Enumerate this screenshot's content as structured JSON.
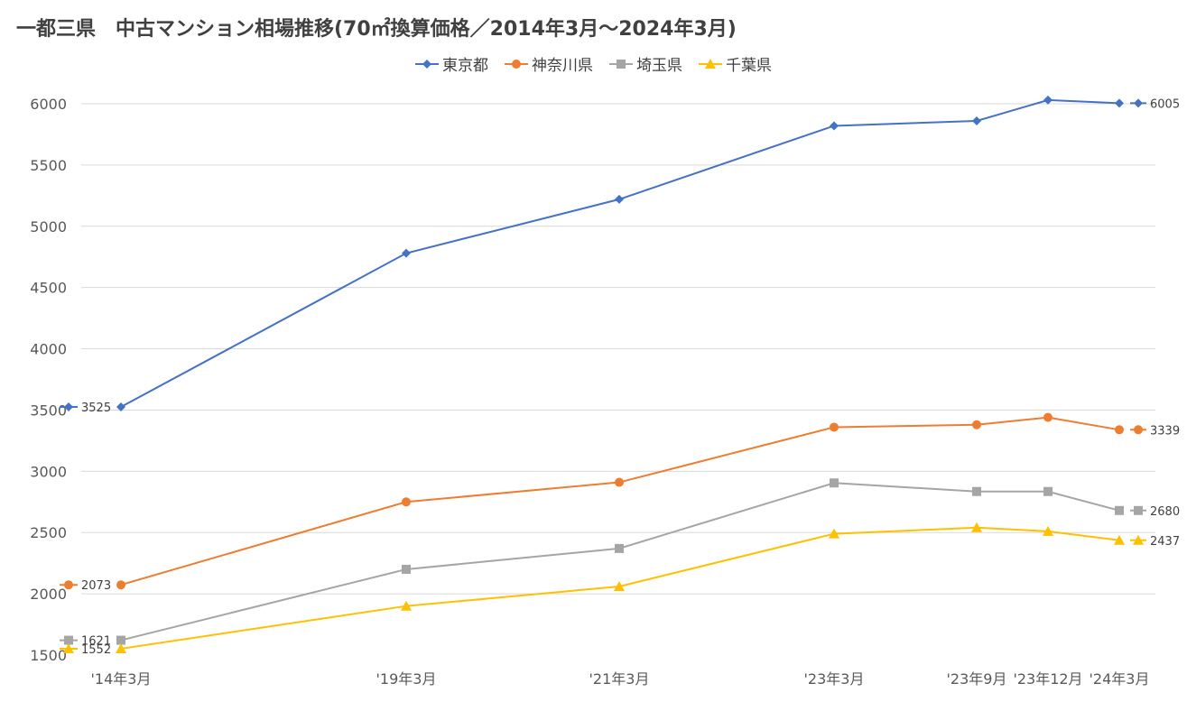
{
  "chart_data": {
    "type": "line",
    "title": "一都三県　中古マンション相場推移(70㎡換算価格／2014年3月～2024年3月)",
    "xlabel": "",
    "ylabel": "",
    "categories": [
      "'14年3月",
      "'19年3月",
      "'21年3月",
      "'23年3月",
      "'23年9月",
      "'23年12月",
      "'24年3月"
    ],
    "x_positions": [
      2014.25,
      2019.25,
      2021.25,
      2023.25,
      2023.75,
      2024.0,
      2024.25
    ],
    "ylim": [
      1500,
      6000
    ],
    "yticks": [
      1500,
      2000,
      2500,
      3000,
      3500,
      4000,
      4500,
      5000,
      5500,
      6000
    ],
    "grid": true,
    "legend_position": "top",
    "series": [
      {
        "name": "東京都",
        "color": "#4472c4",
        "marker": "diamond",
        "values": [
          3525,
          4780,
          5220,
          5820,
          5860,
          6030,
          6005
        ],
        "start_label": "3525",
        "end_label": "6005"
      },
      {
        "name": "神奈川県",
        "color": "#ed7d31",
        "marker": "circle",
        "values": [
          2073,
          2750,
          2910,
          3360,
          3380,
          3440,
          3339
        ],
        "start_label": "2073",
        "end_label": "3339"
      },
      {
        "name": "埼玉県",
        "color": "#a5a5a5",
        "marker": "square",
        "values": [
          1621,
          2200,
          2370,
          2905,
          2835,
          2835,
          2680
        ],
        "start_label": "1621",
        "end_label": "2680"
      },
      {
        "name": "千葉県",
        "color": "#ffc000",
        "marker": "triangle",
        "values": [
          1552,
          1900,
          2060,
          2490,
          2540,
          2510,
          2437
        ],
        "start_label": "1552",
        "end_label": "2437"
      }
    ]
  }
}
